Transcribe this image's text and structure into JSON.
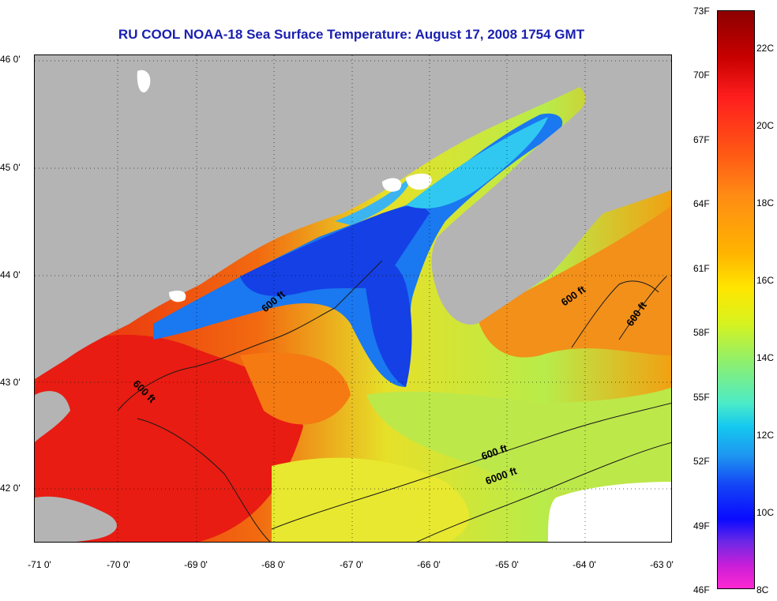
{
  "title": "RU COOL  NOAA-18  Sea Surface Temperature:  August 17, 2008 1754 GMT",
  "latitude_labels": [
    "46 0'",
    "45 0'",
    "44 0'",
    "43 0'",
    "42 0'"
  ],
  "longitude_labels": [
    "-71 0'",
    "-70 0'",
    "-69 0'",
    "-68 0'",
    "-67 0'",
    "-66 0'",
    "-65 0'",
    "-64 0'",
    "-63 0'"
  ],
  "contour_labels": [
    "600 ft",
    "600 ft",
    "600 ft",
    "600 ft",
    "600 ft",
    "6000 ft"
  ],
  "colorbar": {
    "fahrenheit": [
      "73F",
      "70F",
      "67F",
      "64F",
      "61F",
      "58F",
      "55F",
      "52F",
      "49F",
      "46F"
    ],
    "celsius": [
      "22C",
      "20C",
      "18C",
      "16C",
      "14C",
      "12C",
      "10C",
      "8C"
    ]
  },
  "colors": {
    "land": "#b4b4b4",
    "title_blue": "#1a1fb0",
    "warm": "#e81c12",
    "cold": "#1640e8"
  }
}
